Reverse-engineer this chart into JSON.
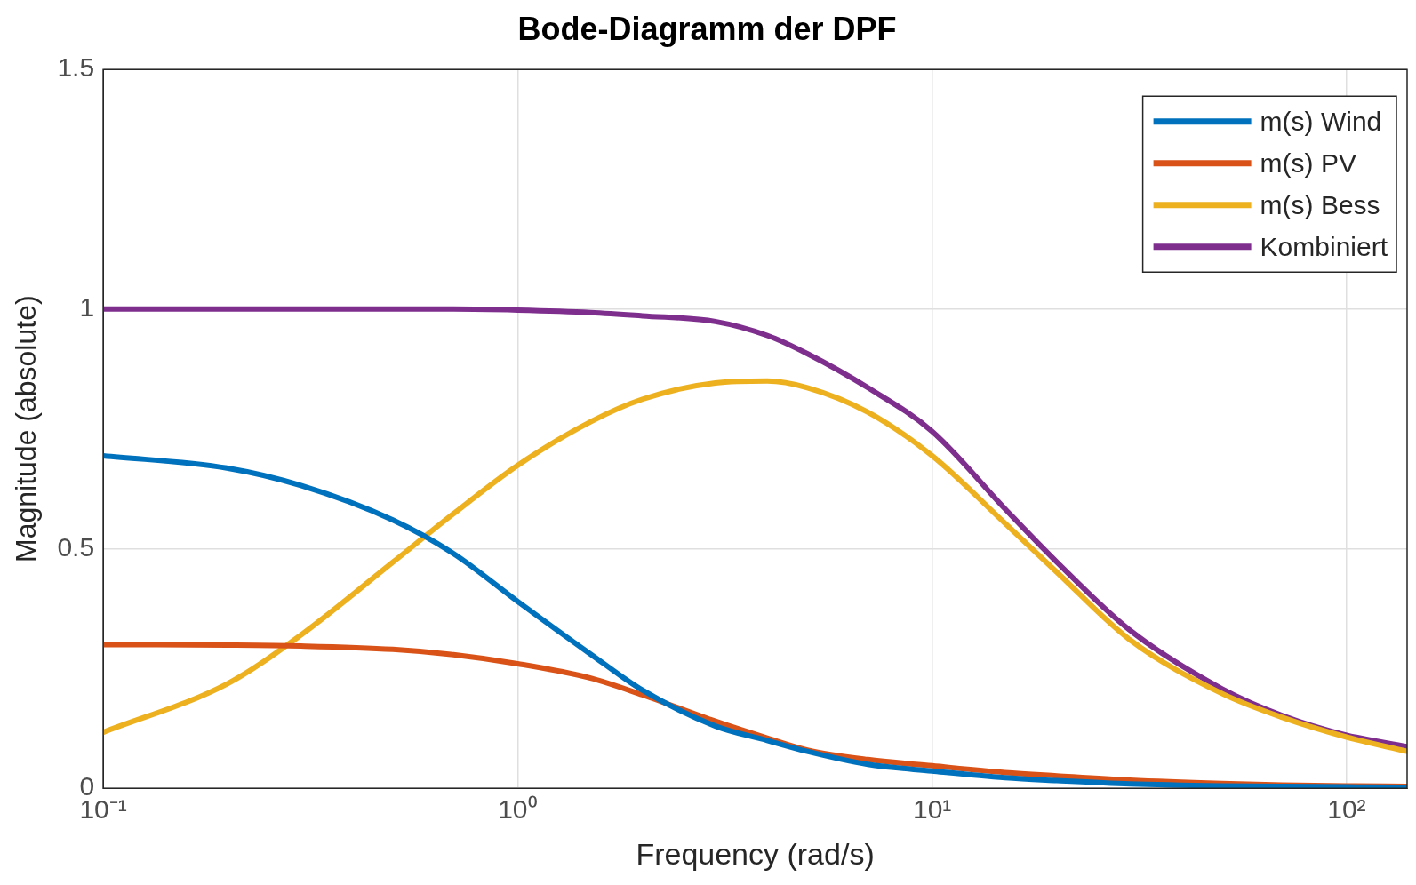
{
  "chart_data": {
    "type": "line",
    "title": "Bode-Diagramm der DPF",
    "xlabel": "Frequency (rad/s)",
    "ylabel": "Magnitude (absolute)",
    "x": [
      0.1,
      0.2,
      0.3,
      0.5,
      0.7,
      1,
      1.5,
      2,
      3,
      4,
      5,
      7,
      10,
      15,
      20,
      30,
      50,
      70,
      100,
      140
    ],
    "series": [
      {
        "name": "m(s) Wind",
        "color": "#0072bd",
        "values": [
          0.694,
          0.668,
          0.632,
          0.56,
          0.49,
          0.39,
          0.28,
          0.205,
          0.13,
          0.1,
          0.077,
          0.05,
          0.036,
          0.022,
          0.016,
          0.009,
          0.005,
          0.004,
          0.003,
          0.002
        ]
      },
      {
        "name": "m(s) PV",
        "color": "#d95319",
        "values": [
          0.3,
          0.299,
          0.297,
          0.29,
          0.279,
          0.26,
          0.23,
          0.195,
          0.14,
          0.105,
          0.08,
          0.06,
          0.047,
          0.033,
          0.026,
          0.017,
          0.01,
          0.007,
          0.005,
          0.004
        ]
      },
      {
        "name": "m(s) Bess",
        "color": "#edb120",
        "values": [
          0.117,
          0.219,
          0.32,
          0.472,
          0.573,
          0.674,
          0.765,
          0.812,
          0.846,
          0.85,
          0.836,
          0.785,
          0.694,
          0.553,
          0.451,
          0.31,
          0.198,
          0.148,
          0.107,
          0.077
        ]
      },
      {
        "name": "Kombiniert",
        "color": "#7e2f8e",
        "values": [
          1,
          1,
          1,
          1,
          1,
          0.998,
          0.993,
          0.986,
          0.974,
          0.945,
          0.907,
          0.836,
          0.745,
          0.583,
          0.472,
          0.33,
          0.208,
          0.152,
          0.111,
          0.087
        ]
      }
    ],
    "log": "x",
    "xlim": [
      0.1,
      140
    ],
    "xticks": [
      {
        "value": 0.1,
        "label": "10⁻¹"
      },
      {
        "value": 1,
        "label": "10⁰"
      },
      {
        "value": 10,
        "label": "10¹"
      },
      {
        "value": 100,
        "label": "10²"
      }
    ],
    "ylim": [
      0,
      1.5
    ],
    "yticks": [
      0,
      0.5,
      1,
      1.5
    ],
    "grid": true,
    "legend": "top right",
    "line_style": "solid",
    "marker": "none"
  }
}
